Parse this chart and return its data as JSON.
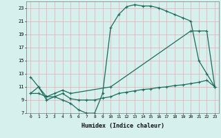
{
  "title": "",
  "xlabel": "Humidex (Indice chaleur)",
  "ylabel": "",
  "bg_color": "#d6f0ee",
  "grid_color": "#e8b4b8",
  "line_color": "#1a6b5a",
  "xlim": [
    -0.5,
    23.5
  ],
  "ylim": [
    7,
    24
  ],
  "yticks": [
    7,
    9,
    11,
    13,
    15,
    17,
    19,
    21,
    23
  ],
  "xticks": [
    0,
    1,
    2,
    3,
    4,
    5,
    6,
    7,
    8,
    9,
    10,
    11,
    12,
    13,
    14,
    15,
    16,
    17,
    18,
    19,
    20,
    21,
    22,
    23
  ],
  "line1_x": [
    0,
    1,
    2,
    3,
    4,
    5,
    6,
    7,
    8,
    9,
    10,
    11,
    12,
    13,
    14,
    15,
    16,
    17,
    18,
    19,
    20,
    21,
    22,
    23
  ],
  "line1_y": [
    12.5,
    11,
    9,
    9.5,
    9,
    8.5,
    7.5,
    7,
    7,
    10,
    20,
    22,
    23.2,
    23.5,
    23.3,
    23.3,
    23.0,
    22.5,
    22.0,
    21.5,
    21.0,
    15.0,
    13.0,
    11.0
  ],
  "line2_x": [
    0,
    1,
    2,
    3,
    4,
    5,
    10,
    20,
    21,
    22,
    23
  ],
  "line2_y": [
    10,
    11,
    9.5,
    10,
    10.5,
    10,
    11,
    19.5,
    19.5,
    19.5,
    11
  ],
  "line3_x": [
    0,
    1,
    2,
    3,
    4,
    5,
    6,
    7,
    8,
    9,
    10,
    11,
    12,
    13,
    14,
    15,
    16,
    17,
    18,
    19,
    20,
    21,
    22,
    23
  ],
  "line3_y": [
    10,
    10,
    9.5,
    9.5,
    10,
    9.2,
    9.0,
    9.0,
    9.0,
    9.3,
    9.5,
    10.0,
    10.2,
    10.4,
    10.6,
    10.7,
    10.9,
    11.0,
    11.2,
    11.3,
    11.5,
    11.7,
    12.0,
    11.0
  ]
}
